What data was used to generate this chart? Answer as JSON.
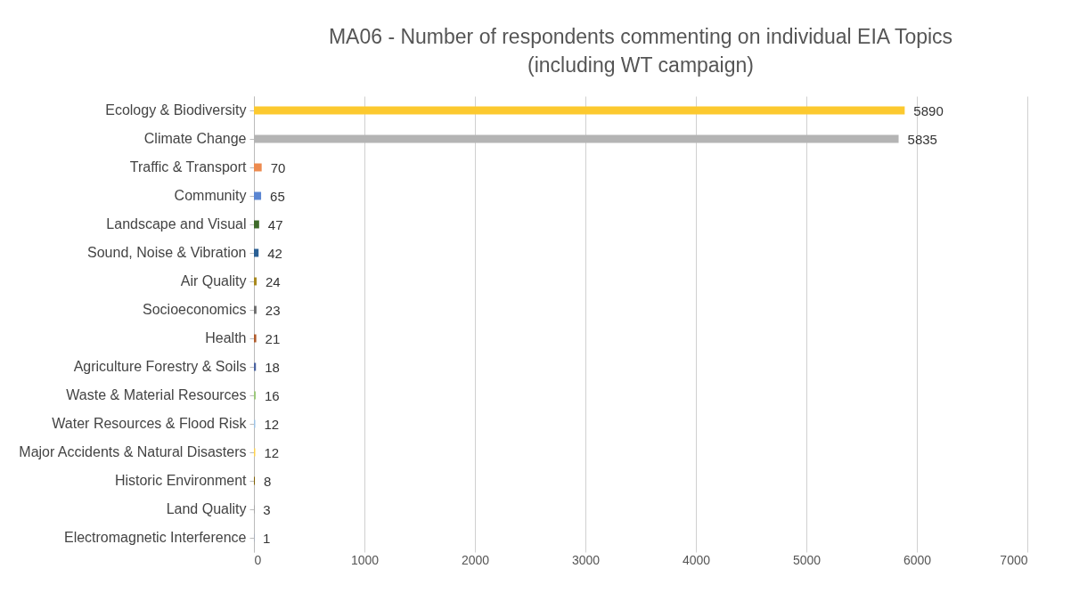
{
  "chart_data": {
    "type": "bar",
    "orientation": "horizontal",
    "title": "MA06 - Number of respondents commenting on individual EIA Topics\n(including WT campaign)",
    "categories": [
      "Ecology & Biodiversity",
      "Climate Change",
      "Traffic & Transport",
      "Community",
      "Landscape and Visual",
      "Sound, Noise & Vibration",
      "Air Quality",
      "Socioeconomics",
      "Health",
      "Agriculture Forestry & Soils",
      "Waste & Material Resources",
      "Water Resources & Flood Risk",
      "Major Accidents & Natural Disasters",
      "Historic Environment",
      "Land Quality",
      "Electromagnetic Interference"
    ],
    "values": [
      5890,
      5835,
      70,
      65,
      47,
      42,
      24,
      23,
      21,
      18,
      16,
      12,
      12,
      8,
      3,
      1
    ],
    "colors": [
      "#fcc92f",
      "#b4b4b4",
      "#ed8b4f",
      "#5b86d2",
      "#3e6b2a",
      "#2a5f94",
      "#a8891e",
      "#6b6b6b",
      "#b05a2a",
      "#4a62a0",
      "#9cc97a",
      "#9dc3e6",
      "#ffd24a",
      "#7f6000",
      "#8a8a8a",
      "#4472c4"
    ],
    "data_labels": true,
    "xlim": [
      0,
      7000
    ],
    "xticks": [
      0,
      1000,
      2000,
      3000,
      4000,
      5000,
      6000,
      7000
    ],
    "grid": "x"
  }
}
